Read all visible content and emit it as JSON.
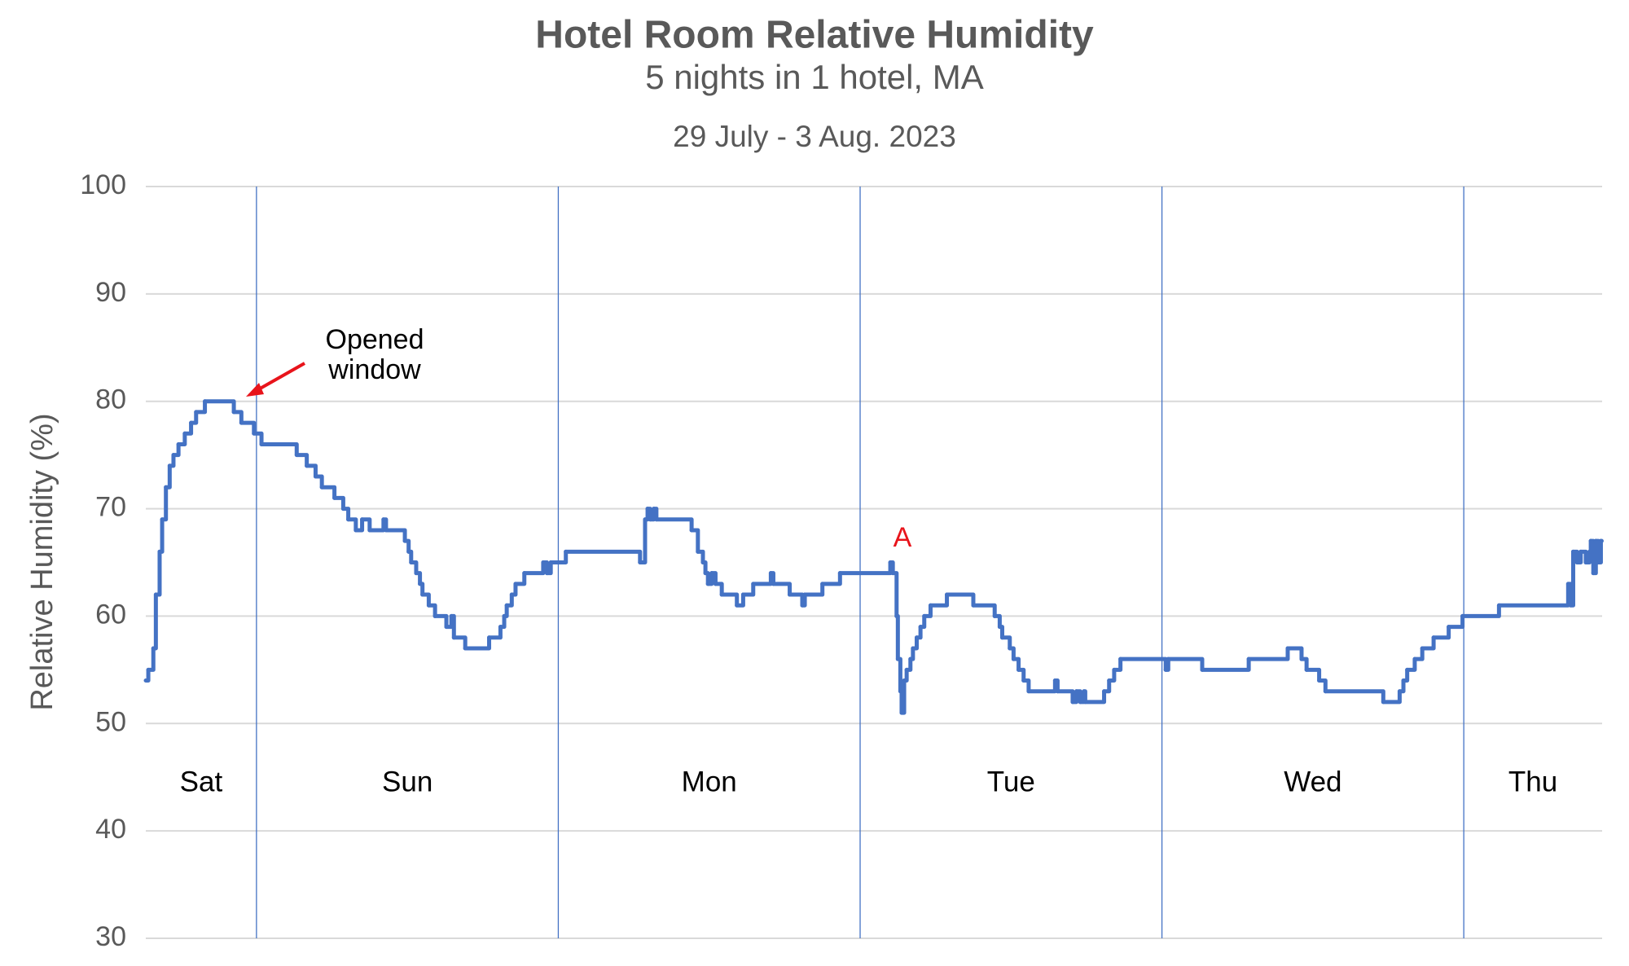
{
  "chart_data": {
    "type": "line",
    "title": "Hotel Room Relative Humidity",
    "subtitle": "5 nights in 1 hotel, MA",
    "date_range": "29 July - 3 Aug. 2023",
    "y_axis_label": "Relative Humidity (%)",
    "line_style": "step",
    "grid": true,
    "xlim": [
      15.2,
      131
    ],
    "day_dividers": [
      24,
      48,
      72,
      96,
      120
    ],
    "day_labels": [
      "Sat",
      "Sun",
      "Mon",
      "Tue",
      "Wed",
      "Thu"
    ],
    "ylim": [
      30,
      100
    ],
    "yticks": [
      30,
      40,
      50,
      60,
      70,
      80,
      90,
      100
    ],
    "annotations": [
      {
        "text": [
          "Opened",
          "window"
        ]
      },
      {
        "text": "A"
      }
    ],
    "series": [
      {
        "color": "#4472c4",
        "x": [
          15.2,
          15.4,
          15.8,
          16.0,
          16.3,
          16.5,
          16.8,
          17.1,
          17.4,
          17.8,
          18.3,
          18.8,
          19.2,
          19.9,
          22.2,
          22.8,
          23.8,
          24.4,
          27.2,
          28.0,
          28.7,
          29.2,
          30.2,
          30.9,
          31.3,
          31.9,
          32.4,
          33.0,
          34.1,
          34.3,
          35.8,
          36.1,
          36.3,
          36.7,
          37.0,
          37.2,
          37.7,
          38.2,
          39.1,
          39.5,
          39.7,
          40.6,
          42.5,
          43.4,
          43.7,
          43.9,
          44.3,
          44.6,
          45.3,
          46.8,
          47.1,
          47.4,
          48.6,
          54.5,
          54.9,
          55.1,
          55.3,
          55.6,
          55.8,
          58.6,
          59.1,
          59.5,
          59.7,
          59.9,
          60.2,
          60.5,
          61.0,
          62.2,
          62.7,
          63.5,
          64.9,
          65.1,
          66.4,
          67.4,
          67.6,
          69.0,
          70.4,
          74.4,
          74.6,
          74.9,
          75.0,
          75.2,
          75.3,
          75.5,
          75.7,
          76.0,
          76.2,
          76.5,
          76.8,
          77.1,
          77.6,
          78.9,
          81.0,
          82.7,
          83.1,
          83.3,
          83.9,
          84.2,
          84.6,
          85.0,
          85.4,
          87.5,
          87.7,
          88.9,
          89.2,
          89.5,
          89.8,
          89.9,
          91.4,
          91.8,
          92.2,
          92.7,
          96.3,
          96.5,
          99.2,
          102.9,
          106.0,
          107.1,
          107.5,
          108.5,
          109.0,
          113.6,
          114.9,
          115.2,
          115.5,
          116.1,
          116.7,
          117.6,
          118.8,
          119.9,
          122.8,
          128.3,
          128.5,
          128.7,
          129.0,
          129.3,
          129.7,
          130.0,
          130.1,
          130.3,
          130.5,
          130.7,
          130.9
        ],
        "values": [
          54,
          55,
          57,
          62,
          66,
          69,
          72,
          74,
          75,
          76,
          77,
          78,
          79,
          80,
          79,
          78,
          77,
          76,
          75,
          74,
          73,
          72,
          71,
          70,
          69,
          68,
          69,
          68,
          69,
          68,
          67,
          66,
          65,
          64,
          63,
          62,
          61,
          60,
          59,
          60,
          58,
          57,
          58,
          59,
          60,
          61,
          62,
          63,
          64,
          65,
          64,
          65,
          66,
          65,
          69,
          70,
          69,
          70,
          69,
          68,
          66,
          65,
          64,
          63,
          64,
          63,
          62,
          61,
          62,
          63,
          64,
          63,
          62,
          61,
          62,
          63,
          64,
          65,
          64,
          60,
          56,
          53,
          51,
          54,
          55,
          56,
          57,
          58,
          59,
          60,
          61,
          62,
          61,
          60,
          59,
          58,
          57,
          56,
          55,
          54,
          53,
          54,
          53,
          52,
          53,
          52,
          53,
          52,
          53,
          54,
          55,
          56,
          55,
          56,
          55,
          56,
          57,
          56,
          55,
          54,
          53,
          52,
          53,
          54,
          55,
          56,
          57,
          58,
          59,
          60,
          61,
          63,
          61,
          66,
          65,
          66,
          65,
          66,
          67,
          64,
          67,
          65,
          67
        ]
      }
    ]
  }
}
